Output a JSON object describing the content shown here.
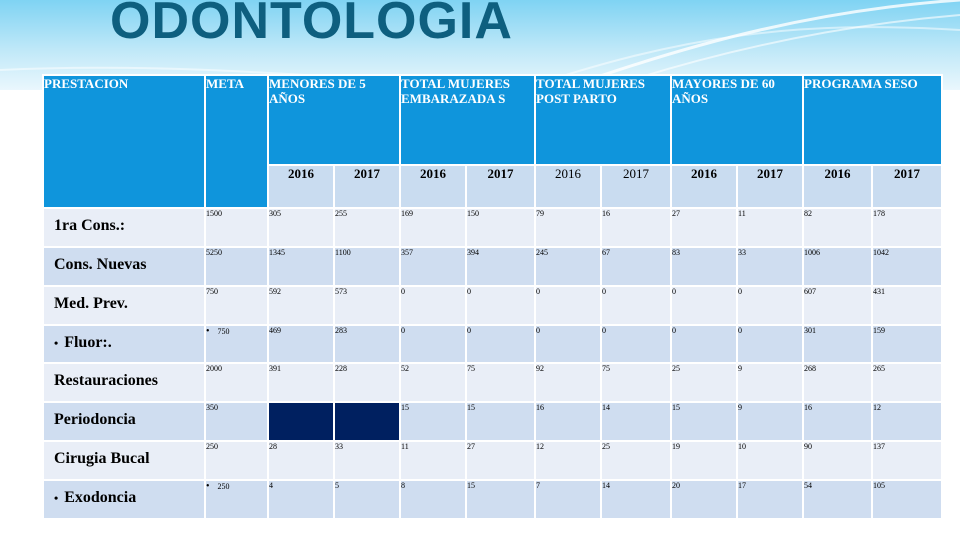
{
  "title": "ODONTOLOGIA",
  "columns": {
    "prestacion": "PRESTACION",
    "meta": "META",
    "menores": "MENORES DE 5 AÑOS",
    "embarazadas": "TOTAL MUJERES EMBARAZADA S",
    "post_parto": "TOTAL MUJERES POST PARTO",
    "mayores": "MAYORES DE 60 AÑOS",
    "seso": "PROGRAMA SESO"
  },
  "years": [
    "2016",
    "2017",
    "2016",
    "2017",
    "2016",
    "2017",
    "2016",
    "2017",
    "2016",
    "2017"
  ],
  "rows": [
    {
      "name": "1ra Cons.:",
      "meta": "1500",
      "values": [
        "305",
        "255",
        "169",
        "150",
        "79",
        "16",
        "27",
        "11",
        "82",
        "178"
      ]
    },
    {
      "name": "Cons. Nuevas",
      "meta": "5250",
      "values": [
        "1345",
        "1100",
        "357",
        "394",
        "245",
        "67",
        "83",
        "33",
        "1006",
        "1042"
      ]
    },
    {
      "name": "Med. Prev.",
      "meta": "750",
      "values": [
        "592",
        "573",
        "0",
        "0",
        "0",
        "0",
        "0",
        "0",
        "607",
        "431"
      ]
    },
    {
      "name": "Fluor:.",
      "meta": "750",
      "values": [
        "469",
        "283",
        "0",
        "0",
        "0",
        "0",
        "0",
        "0",
        "301",
        "159"
      ]
    },
    {
      "name": "Restauraciones",
      "meta": "2000",
      "values": [
        "391",
        "228",
        "52",
        "75",
        "92",
        "75",
        "25",
        "9",
        "268",
        "265"
      ]
    },
    {
      "name": "Periodoncia",
      "meta": "350",
      "values": [
        "",
        "",
        "15",
        "15",
        "16",
        "14",
        "15",
        "9",
        "16",
        "12"
      ]
    },
    {
      "name": "Cirugia Bucal",
      "meta": "250",
      "values": [
        "28",
        "33",
        "11",
        "27",
        "12",
        "25",
        "19",
        "10",
        "90",
        "137"
      ]
    },
    {
      "name": "Exodoncia",
      "meta": "250",
      "values": [
        "4",
        "5",
        "8",
        "15",
        "7",
        "14",
        "20",
        "17",
        "54",
        "105"
      ]
    }
  ]
}
